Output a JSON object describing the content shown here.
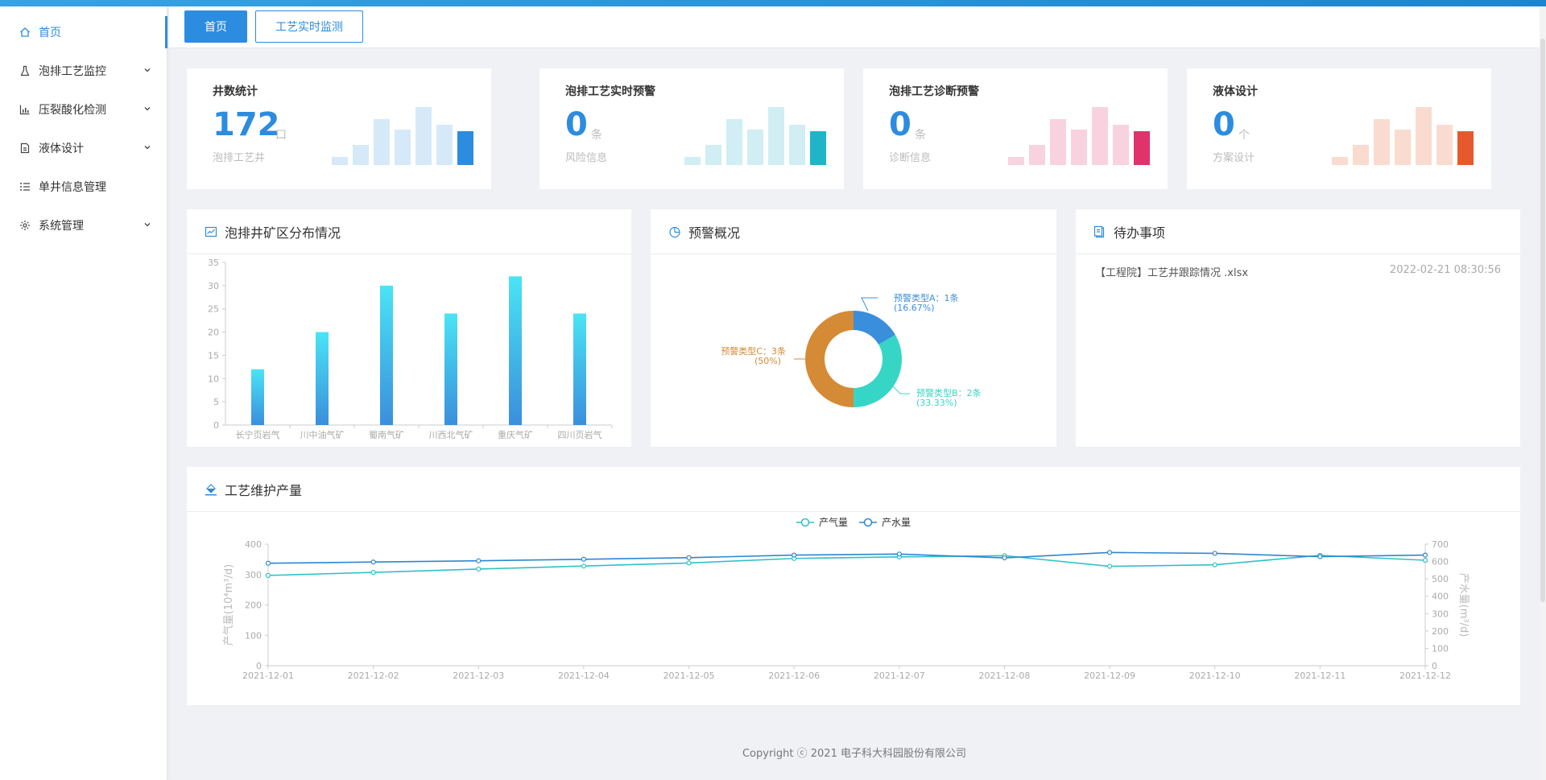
{
  "sidebar": {
    "items": [
      {
        "label": "首页",
        "icon": "home-icon",
        "active": true,
        "expandable": false
      },
      {
        "label": "泡排工艺监控",
        "icon": "flask-icon",
        "active": false,
        "expandable": true
      },
      {
        "label": "压裂酸化检测",
        "icon": "chart-icon",
        "active": false,
        "expandable": true
      },
      {
        "label": "液体设计",
        "icon": "document-icon",
        "active": false,
        "expandable": true
      },
      {
        "label": "单井信息管理",
        "icon": "list-icon",
        "active": false,
        "expandable": false
      },
      {
        "label": "系统管理",
        "icon": "gear-icon",
        "active": false,
        "expandable": true
      }
    ]
  },
  "tabs": {
    "home": "首页",
    "monitor": "工艺实时监测"
  },
  "stats": [
    {
      "title": "井数统计",
      "value": "172",
      "unit": "口",
      "sub": "泡排工艺井",
      "color": "#2c8ce0",
      "light": "#d6e9f8",
      "numColor": "#2c8ce0"
    },
    {
      "title": "泡排工艺实时预警",
      "value": "0",
      "unit": "条",
      "sub": "风险信息",
      "color": "#1fb4c8",
      "light": "#d0eef3",
      "numColor": "#2c8ce0"
    },
    {
      "title": "泡排工艺诊断预警",
      "value": "0",
      "unit": "条",
      "sub": "诊断信息",
      "color": "#e0336b",
      "light": "#f8d3df",
      "numColor": "#2c8ce0"
    },
    {
      "title": "液体设计",
      "value": "0",
      "unit": "个",
      "sub": "方案设计",
      "color": "#e8582f",
      "light": "#f9dccf",
      "numColor": "#2c8ce0"
    }
  ],
  "panels": {
    "distribution": "泡排井矿区分布情况",
    "warning": "预警概况",
    "todo": "待办事项",
    "production": "工艺维护产量"
  },
  "todo": {
    "items": [
      {
        "text": "【工程院】工艺井跟踪情况 .xlsx",
        "time": "2022-02-21 08:30:56"
      }
    ]
  },
  "footer": "Copyright ⓒ 2021 电子科大科园股份有限公司",
  "chart_data": [
    {
      "type": "bar",
      "categories": [
        "长宁页岩气",
        "川中油气矿",
        "蜀南气矿",
        "川西北气矿",
        "重庆气矿",
        "四川页岩气"
      ],
      "values": [
        12,
        20,
        30,
        24,
        32,
        24
      ],
      "ylim": [
        0,
        35
      ],
      "yticks": [
        0,
        5,
        10,
        15,
        20,
        25,
        30,
        35
      ],
      "colors": {
        "top": "#4ae4f5",
        "bottom": "#3a8fdc"
      }
    },
    {
      "type": "pie",
      "slices": [
        {
          "label": "预警类型A：1条",
          "pct": "(16.67%)",
          "value": 1,
          "color": "#3a8fdc"
        },
        {
          "label": "预警类型B：2条",
          "pct": "(33.33%)",
          "value": 2,
          "color": "#36d6c6"
        },
        {
          "label": "预警类型C：3条",
          "pct": "(50%)",
          "value": 3,
          "color": "#d58a36"
        }
      ]
    },
    {
      "type": "line",
      "x": [
        "2021-12-01",
        "2021-12-02",
        "2021-12-03",
        "2021-12-04",
        "2021-12-05",
        "2021-12-06",
        "2021-12-07",
        "2021-12-08",
        "2021-12-09",
        "2021-12-10",
        "2021-12-11",
        "2021-12-12"
      ],
      "series": [
        {
          "name": "产气量",
          "axis": "left",
          "color": "#2ec1c9",
          "values": [
            297,
            307,
            318,
            328,
            338,
            353,
            358,
            362,
            327,
            332,
            363,
            347
          ]
        },
        {
          "name": "产水量",
          "axis": "right",
          "color": "#2f86d0",
          "values": [
            590,
            597,
            604,
            613,
            622,
            637,
            643,
            621,
            652,
            647,
            628,
            637
          ]
        }
      ],
      "ylabel_left": "产气量(10⁴m³/d)",
      "ylabel_right": "产水量(m³/d)",
      "ylim_left": [
        0,
        400
      ],
      "ylim_right": [
        0,
        700
      ],
      "yticks_left": [
        0,
        100,
        200,
        300,
        400
      ],
      "yticks_right": [
        0,
        100,
        200,
        300,
        400,
        500,
        600,
        700
      ]
    }
  ]
}
